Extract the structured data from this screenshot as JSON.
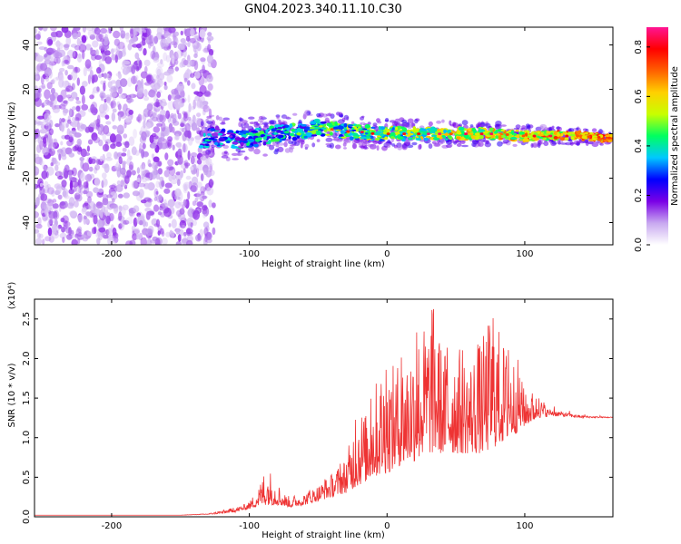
{
  "page": {
    "title": "GN04.2023.340.11.10.C30"
  },
  "chart_data": [
    {
      "type": "heatmap",
      "title": "GN04.2023.340.11.10.C30",
      "xlabel": "Height of straight line (km)",
      "ylabel": "Frequency (Hz)",
      "xlim": [
        -256,
        164
      ],
      "ylim": [
        -50,
        48
      ],
      "x_ticks": [
        -200,
        -100,
        0,
        100
      ],
      "y_ticks": [
        -40,
        -20,
        0,
        20,
        40
      ],
      "grid": false,
      "colorbar": {
        "label": "Normalized spectral amplitude",
        "range": [
          0.0,
          0.88
        ],
        "ticks": [
          0.0,
          0.2,
          0.4,
          0.6,
          0.8
        ],
        "colormap": [
          "#ffffff",
          "#c8a8f0",
          "#7a00e6",
          "#0000ff",
          "#00c8ff",
          "#00ff60",
          "#c8ff00",
          "#ffd000",
          "#ff6000",
          "#ff0000",
          "#ff1493"
        ]
      },
      "regions": [
        {
          "x_from": -256,
          "x_to": -135,
          "description_values": {
            "freq_from": -50,
            "freq_to": 48,
            "amplitude_range": [
              0.0,
              0.12
            ]
          }
        },
        {
          "x_from": -135,
          "x_to": 164,
          "ridge_freq": [
            [
              -130,
              0
            ],
            [
              -120,
              -2
            ],
            [
              -110,
              -3
            ],
            [
              -100,
              -2
            ],
            [
              -90,
              -1
            ],
            [
              -80,
              0
            ],
            [
              -70,
              1
            ],
            [
              -60,
              1
            ],
            [
              -50,
              3
            ],
            [
              -40,
              2
            ],
            [
              -30,
              1
            ],
            [
              -20,
              1
            ],
            [
              -10,
              0
            ],
            [
              0,
              0
            ],
            [
              20,
              0
            ],
            [
              40,
              0
            ],
            [
              60,
              0
            ],
            [
              80,
              0
            ],
            [
              100,
              -1
            ],
            [
              120,
              -1
            ],
            [
              140,
              -1
            ],
            [
              164,
              -2
            ]
          ]
        }
      ]
    },
    {
      "type": "line",
      "xlabel": "Height of straight line (km)",
      "ylabel": "SNR (10 * v/v)",
      "y_multiplier": "(x10⁴)",
      "xlim": [
        -256,
        164
      ],
      "ylim": [
        0.0,
        2.75
      ],
      "x_ticks": [
        -200,
        -100,
        0,
        100
      ],
      "y_ticks": [
        0.0,
        0.5,
        1.0,
        1.5,
        2.0,
        2.5
      ],
      "grid": false,
      "line_color": "#ee3333",
      "envelope": [
        [
          -256,
          0.02
        ],
        [
          -150,
          0.02
        ],
        [
          -130,
          0.04
        ],
        [
          -120,
          0.08
        ],
        [
          -110,
          0.12
        ],
        [
          -100,
          0.18
        ],
        [
          -95,
          0.35
        ],
        [
          -90,
          0.5
        ],
        [
          -85,
          0.6
        ],
        [
          -80,
          0.4
        ],
        [
          -75,
          0.3
        ],
        [
          -70,
          0.25
        ],
        [
          -60,
          0.3
        ],
        [
          -50,
          0.4
        ],
        [
          -40,
          0.55
        ],
        [
          -30,
          0.75
        ],
        [
          -25,
          1.1
        ],
        [
          -20,
          1.4
        ],
        [
          -15,
          1.3
        ],
        [
          -10,
          1.6
        ],
        [
          -5,
          1.9
        ],
        [
          0,
          1.85
        ],
        [
          10,
          2.0
        ],
        [
          20,
          2.3
        ],
        [
          30,
          2.5
        ],
        [
          35,
          2.72
        ],
        [
          40,
          2.1
        ],
        [
          50,
          2.2
        ],
        [
          60,
          2.0
        ],
        [
          70,
          2.3
        ],
        [
          75,
          2.55
        ],
        [
          80,
          2.45
        ],
        [
          85,
          2.2
        ],
        [
          90,
          2.05
        ],
        [
          95,
          2.0
        ],
        [
          100,
          1.55
        ],
        [
          105,
          1.6
        ],
        [
          110,
          1.5
        ],
        [
          120,
          1.4
        ],
        [
          130,
          1.35
        ],
        [
          140,
          1.3
        ],
        [
          150,
          1.28
        ],
        [
          164,
          1.27
        ]
      ],
      "baseline": [
        [
          -256,
          0.02
        ],
        [
          -150,
          0.02
        ],
        [
          -130,
          0.03
        ],
        [
          -120,
          0.04
        ],
        [
          -110,
          0.06
        ],
        [
          -100,
          0.1
        ],
        [
          -90,
          0.15
        ],
        [
          -80,
          0.15
        ],
        [
          -70,
          0.12
        ],
        [
          -60,
          0.15
        ],
        [
          -50,
          0.2
        ],
        [
          -40,
          0.25
        ],
        [
          -30,
          0.3
        ],
        [
          -20,
          0.4
        ],
        [
          -10,
          0.5
        ],
        [
          0,
          0.55
        ],
        [
          10,
          0.65
        ],
        [
          20,
          0.7
        ],
        [
          30,
          0.8
        ],
        [
          40,
          0.8
        ],
        [
          50,
          0.8
        ],
        [
          60,
          0.8
        ],
        [
          70,
          0.8
        ],
        [
          80,
          0.9
        ],
        [
          90,
          1.0
        ],
        [
          100,
          1.15
        ],
        [
          110,
          1.25
        ],
        [
          120,
          1.27
        ],
        [
          130,
          1.26
        ],
        [
          140,
          1.25
        ],
        [
          150,
          1.25
        ],
        [
          164,
          1.25
        ]
      ]
    }
  ]
}
